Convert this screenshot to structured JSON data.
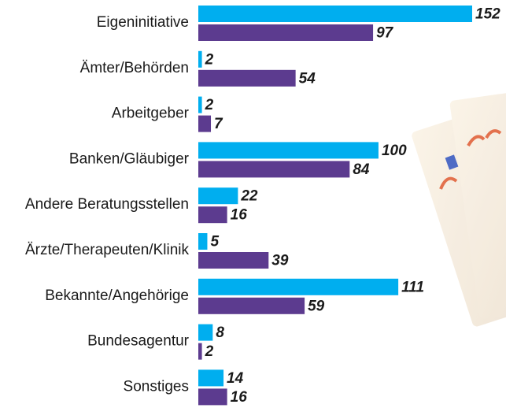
{
  "chart_data": {
    "type": "bar",
    "orientation": "horizontal",
    "categories": [
      "Eigeninitiative",
      "Ämter/Behörden",
      "Arbeitgeber",
      "Banken/Gläubiger",
      "Andere Beratungsstellen",
      "Ärzte/Therapeuten/Klinik",
      "Bekannte/Angehörige",
      "Bundesagentur",
      "Sonstiges"
    ],
    "series": [
      {
        "color": "#00aeef",
        "values": [
          152,
          2,
          2,
          100,
          22,
          5,
          111,
          8,
          14
        ]
      },
      {
        "color": "#5c3b8f",
        "values": [
          97,
          54,
          7,
          84,
          16,
          39,
          59,
          2,
          16
        ]
      }
    ]
  }
}
